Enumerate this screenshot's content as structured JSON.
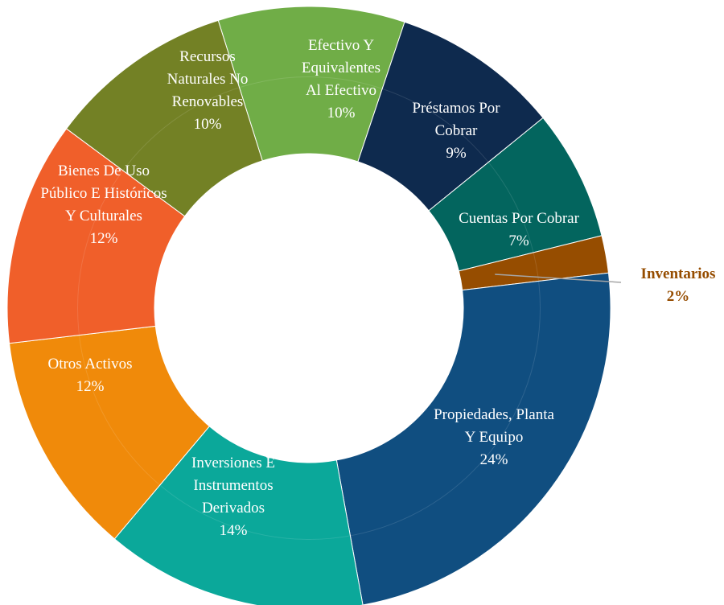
{
  "chart_data": {
    "type": "pie",
    "variant": "donut",
    "title": "",
    "unit": "%",
    "slices": [
      {
        "label": "Efectivo Y Equivalentes Al Efectivo",
        "lines": [
          "Efectivo Y",
          "Equivalentes",
          "Al Efectivo"
        ],
        "pct_label": "10%",
        "value": 10,
        "color": "#70AD47"
      },
      {
        "label": "Préstamos Por Cobrar",
        "lines": [
          "Préstamos Por",
          "Cobrar"
        ],
        "pct_label": "9%",
        "value": 9,
        "color": "#0E2A4E"
      },
      {
        "label": "Cuentas Por Cobrar",
        "lines": [
          "Cuentas Por Cobrar"
        ],
        "pct_label": "7%",
        "value": 7,
        "color": "#03655E"
      },
      {
        "label": "Inventarios",
        "lines": [
          "Inventarios"
        ],
        "pct_label": "2%",
        "value": 2,
        "color": "#964D00",
        "outside": true
      },
      {
        "label": "Propiedades, Planta Y Equipo",
        "lines": [
          "Propiedades, Planta",
          "Y Equipo"
        ],
        "pct_label": "24%",
        "value": 24,
        "color": "#104E80"
      },
      {
        "label": "Inversiones E Instrumentos Derivados",
        "lines": [
          "Inversiones E",
          "Instrumentos",
          "Derivados"
        ],
        "pct_label": "14%",
        "value": 14,
        "color": "#0BA89A"
      },
      {
        "label": "Otros Activos",
        "lines": [
          "Otros Activos"
        ],
        "pct_label": "12%",
        "value": 12,
        "color": "#F08A0A"
      },
      {
        "label": "Bienes De Uso Público E Históricos Y Culturales",
        "lines": [
          "Bienes De Uso",
          "Público E Históricos",
          "Y Culturales"
        ],
        "pct_label": "12%",
        "value": 12,
        "color": "#F05F2A"
      },
      {
        "label": "Recursos Naturales No Renovables",
        "lines": [
          "Recursos",
          "Naturales No",
          "Renovables"
        ],
        "pct_label": "10%",
        "value": 10,
        "color": "#738125"
      }
    ]
  }
}
